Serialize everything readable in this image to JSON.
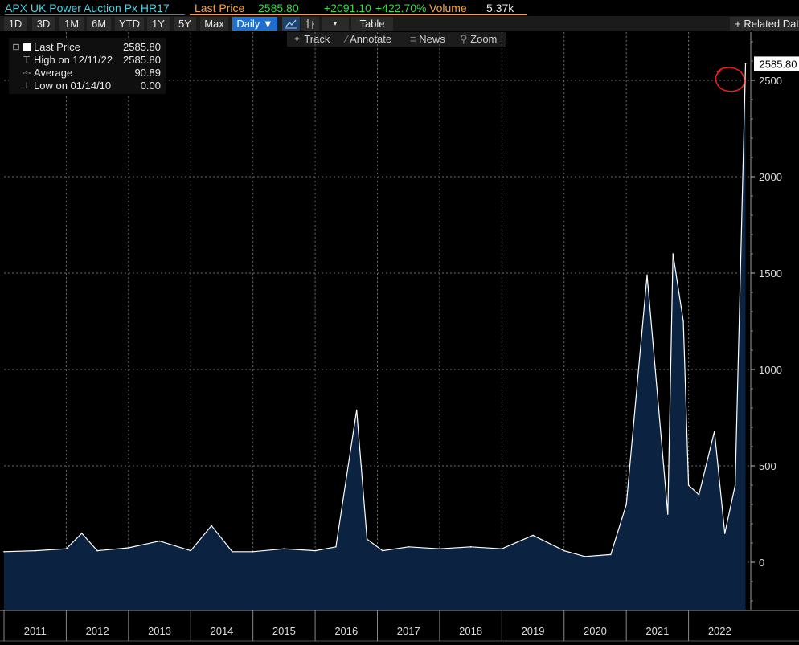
{
  "header": {
    "security": "APX UK Power Auction Px HR17",
    "last_price_label": "Last Price",
    "last_price": "2585.80",
    "change": "+2091.10",
    "change_pct": "+422.70%",
    "volume_label": "Volume",
    "volume": "5.37k"
  },
  "toolbar": {
    "ranges": [
      "1D",
      "3D",
      "1M",
      "6M",
      "YTD",
      "1Y",
      "5Y",
      "Max"
    ],
    "period": "Daily ▼",
    "table": "Table",
    "related": "+ Related Dat"
  },
  "tools": {
    "track": "Track",
    "annotate": "Annotate",
    "news": "News",
    "zoom": "Zoom"
  },
  "legend": {
    "last_label": "Last Price",
    "last_value": "2585.80",
    "high_label": "High on 12/11/22",
    "high_value": "2585.80",
    "avg_label": "Average",
    "avg_value": "90.89",
    "low_label": "Low on 01/14/10",
    "low_value": "0.00"
  },
  "colors": {
    "accent": "#f4a540",
    "security": "#4fd1e0",
    "change": "#3ad84a",
    "area": "#0b2340",
    "active": "#1e6fd0"
  },
  "chart_data": {
    "type": "area",
    "ylim": [
      -250,
      2750
    ],
    "yticks": [
      0,
      500,
      1000,
      1500,
      2000,
      2500
    ],
    "last_value_tag": "2585.80",
    "grid": true,
    "x_years": [
      "2011",
      "2012",
      "2013",
      "2014",
      "2015",
      "2016",
      "2017",
      "2018",
      "2019",
      "2020",
      "2021",
      "2022"
    ],
    "series": [
      {
        "x": [
          "2011-01",
          "2011-07",
          "2012-01",
          "2012-04",
          "2012-07",
          "2013-01",
          "2013-07",
          "2014-01",
          "2014-05",
          "2014-09",
          "2015-01",
          "2015-07",
          "2016-01",
          "2016-05",
          "2016-09",
          "2016-11",
          "2017-02",
          "2017-07",
          "2018-01",
          "2018-07",
          "2019-01",
          "2019-07",
          "2020-01",
          "2020-05",
          "2020-10",
          "2021-01",
          "2021-05",
          "2021-09",
          "2021-10",
          "2021-12",
          "2022-01",
          "2022-03",
          "2022-06",
          "2022-08",
          "2022-10",
          "2022-12"
        ],
        "y": [
          55,
          60,
          70,
          150,
          60,
          75,
          110,
          60,
          190,
          55,
          55,
          70,
          60,
          80,
          790,
          120,
          60,
          80,
          70,
          80,
          70,
          140,
          60,
          30,
          40,
          300,
          1490,
          250,
          1600,
          1250,
          400,
          350,
          680,
          150,
          400,
          2585.8
        ]
      }
    ]
  }
}
